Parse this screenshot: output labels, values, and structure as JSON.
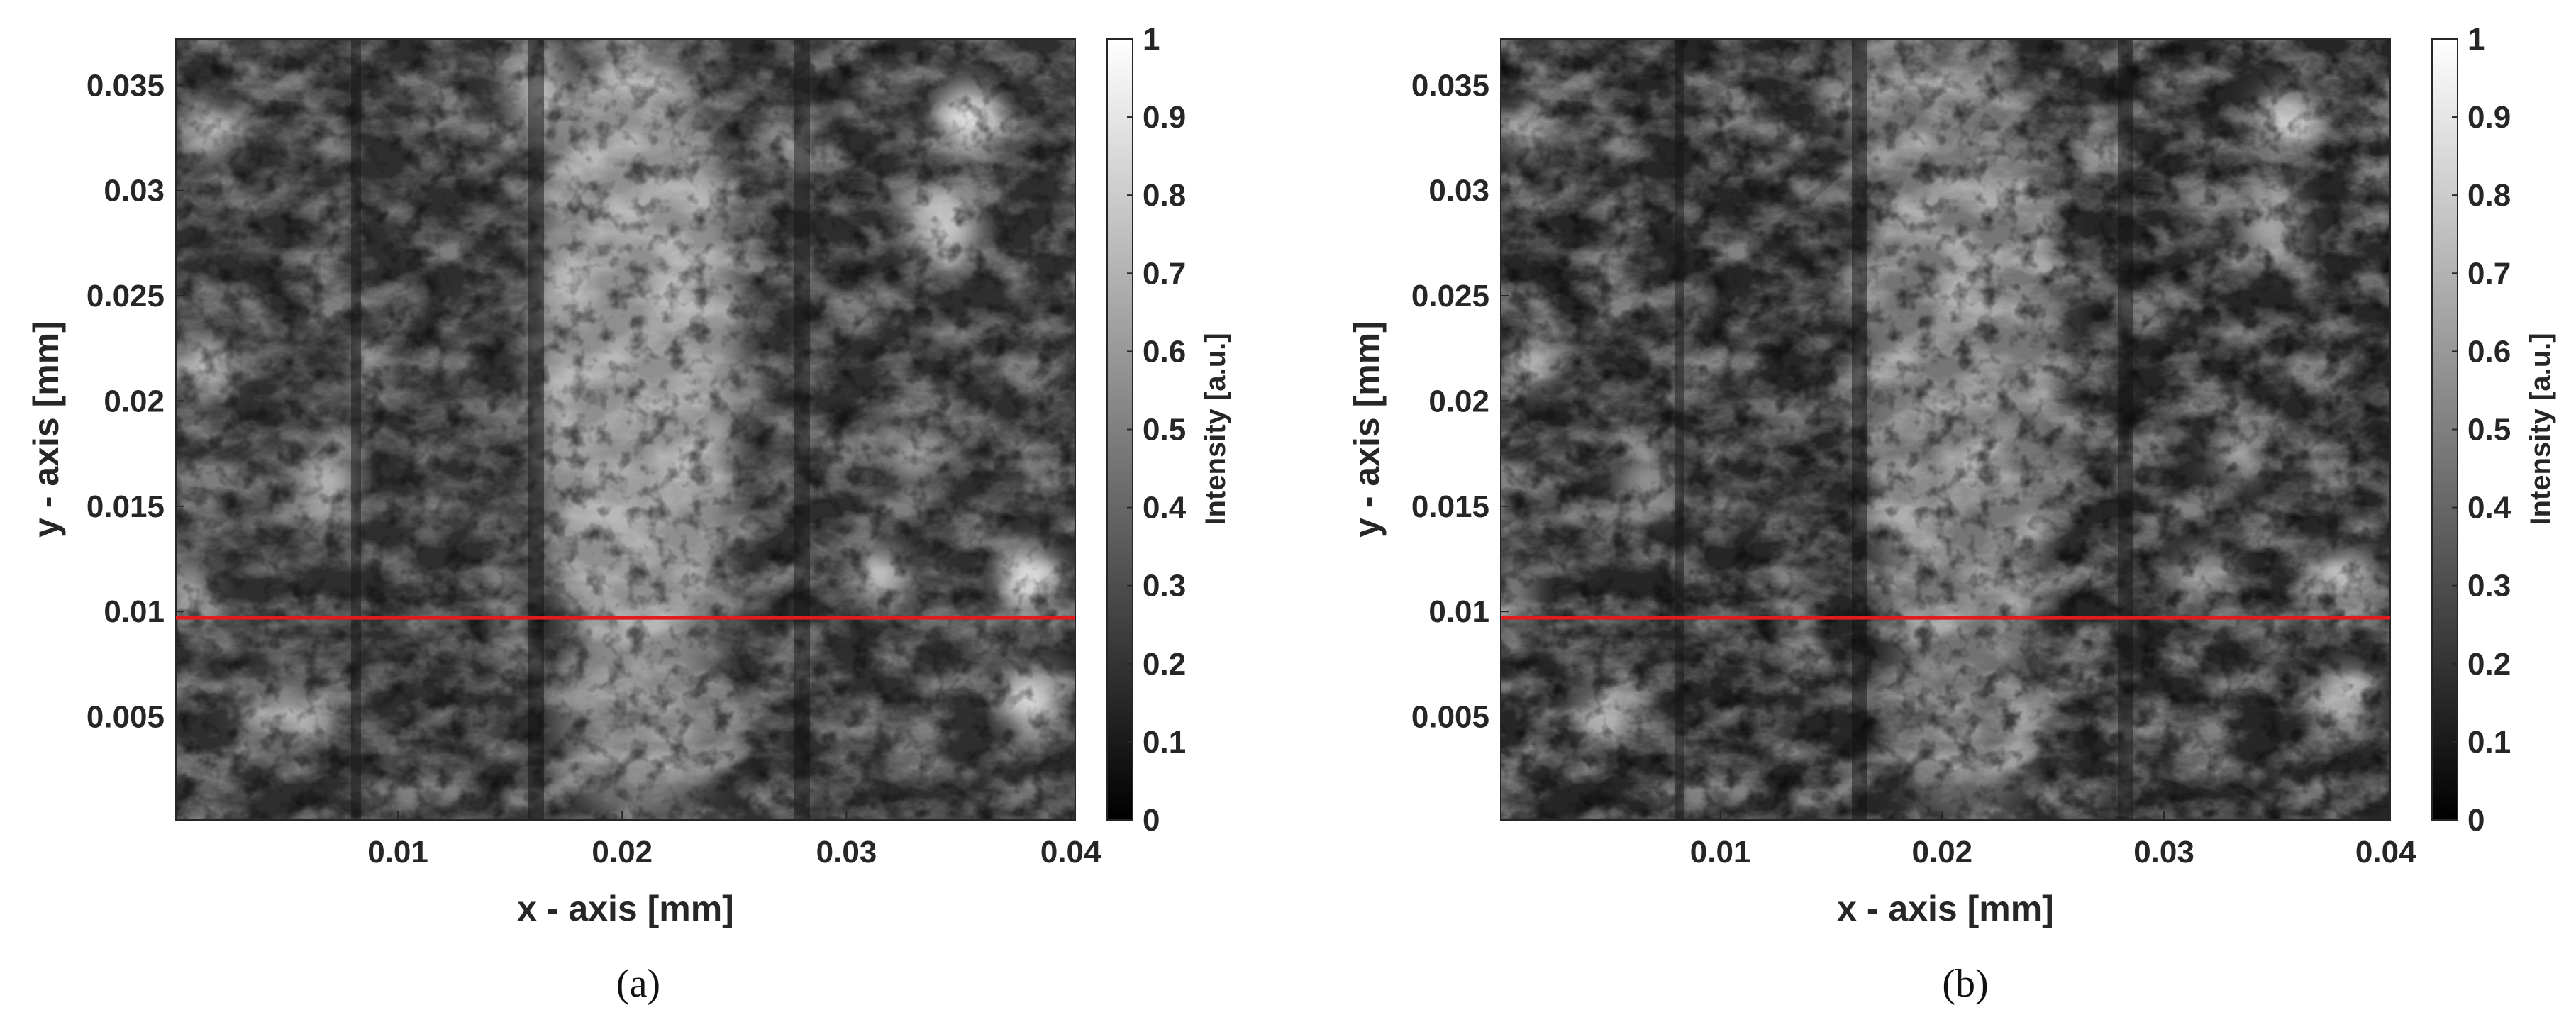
{
  "panels": [
    {
      "id": "a",
      "caption": "(a)",
      "chart_data": {
        "type": "heatmap",
        "xlabel": "x - axis [mm]",
        "ylabel": "y - axis [mm]",
        "xlim": [
          0.0001,
          0.0402
        ],
        "ylim": [
          0.0001,
          0.0372
        ],
        "xticks": [
          0.01,
          0.02,
          0.03,
          0.04
        ],
        "xtick_labels": [
          "0.01",
          "0.02",
          "0.03",
          "0.04"
        ],
        "yticks": [
          0.005,
          0.01,
          0.015,
          0.02,
          0.025,
          0.03,
          0.035
        ],
        "ytick_labels": [
          "0.005",
          "0.01",
          "0.015",
          "0.02",
          "0.025",
          "0.03",
          "0.035"
        ],
        "colormap": "gray",
        "colorbar": {
          "label": "Intensity [a.u.]",
          "range": [
            0,
            1
          ],
          "ticks": [
            0,
            0.1,
            0.2,
            0.3,
            0.4,
            0.5,
            0.6,
            0.7,
            0.8,
            0.9,
            1
          ],
          "tick_labels": [
            "0",
            "0.1",
            "0.2",
            "0.3",
            "0.4",
            "0.5",
            "0.6",
            "0.7",
            "0.8",
            "0.9",
            "1"
          ]
        },
        "reference_line": {
          "orientation": "horizontal",
          "y": 0.0097,
          "color": "#e41a1c"
        },
        "contrast": 1.0,
        "seed": 7
      }
    },
    {
      "id": "b",
      "caption": "(b)",
      "chart_data": {
        "type": "heatmap",
        "xlabel": "x - axis [mm]",
        "ylabel": "y - axis [mm]",
        "xlim": [
          0.0001,
          0.0402
        ],
        "ylim": [
          0.0001,
          0.0372
        ],
        "xticks": [
          0.01,
          0.02,
          0.03,
          0.04
        ],
        "xtick_labels": [
          "0.01",
          "0.02",
          "0.03",
          "0.04"
        ],
        "yticks": [
          0.005,
          0.01,
          0.015,
          0.02,
          0.025,
          0.03,
          0.035
        ],
        "ytick_labels": [
          "0.005",
          "0.01",
          "0.015",
          "0.02",
          "0.025",
          "0.03",
          "0.035"
        ],
        "colormap": "gray",
        "colorbar": {
          "label": "Intensity [a.u.]",
          "range": [
            0,
            1
          ],
          "ticks": [
            0,
            0.1,
            0.2,
            0.3,
            0.4,
            0.5,
            0.6,
            0.7,
            0.8,
            0.9,
            1
          ],
          "tick_labels": [
            "0",
            "0.1",
            "0.2",
            "0.3",
            "0.4",
            "0.5",
            "0.6",
            "0.7",
            "0.8",
            "0.9",
            "1"
          ]
        },
        "reference_line": {
          "orientation": "horizontal",
          "y": 0.0097,
          "color": "#e41a1c"
        },
        "contrast": 0.85,
        "seed": 7
      }
    }
  ]
}
